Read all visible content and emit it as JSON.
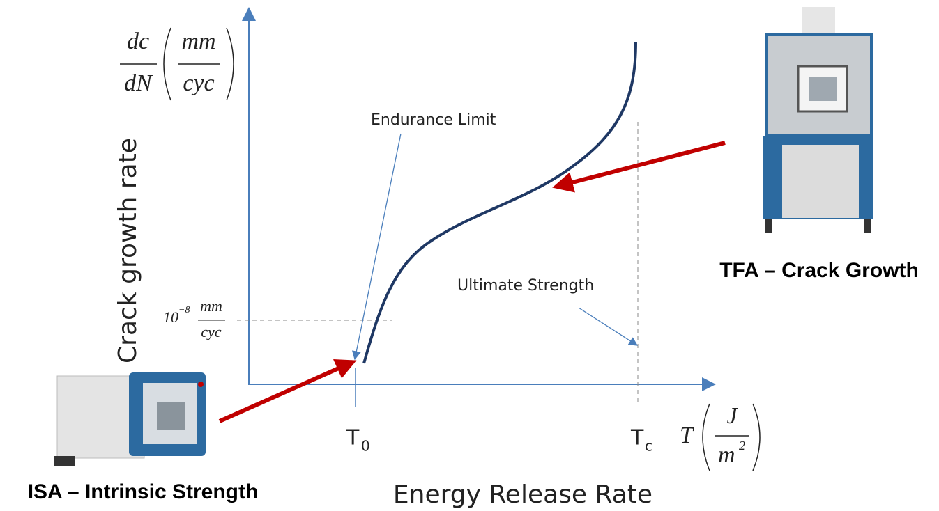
{
  "y_axis": {
    "title": "Crack growth rate",
    "numerator": "dc",
    "denominator": "dN",
    "unit_numerator": "mm",
    "unit_denominator": "cyc"
  },
  "x_axis": {
    "title": "Energy Release Rate",
    "symbol": "T",
    "unit_numerator": "J",
    "unit_denominator": "m",
    "unit_denominator_exponent": "2"
  },
  "threshold": {
    "base": "10",
    "exponent": "−8",
    "unit_numerator": "mm",
    "unit_denominator": "cyc"
  },
  "markers": [
    {
      "symbol": "T",
      "subscript": "0"
    },
    {
      "symbol": "T",
      "subscript": "c"
    }
  ],
  "annotations": [
    "Endurance Limit",
    "Ultimate Strength"
  ],
  "instruments": [
    {
      "label": "TFA – Crack Growth"
    },
    {
      "label": "ISA – Intrinsic Strength"
    }
  ]
}
